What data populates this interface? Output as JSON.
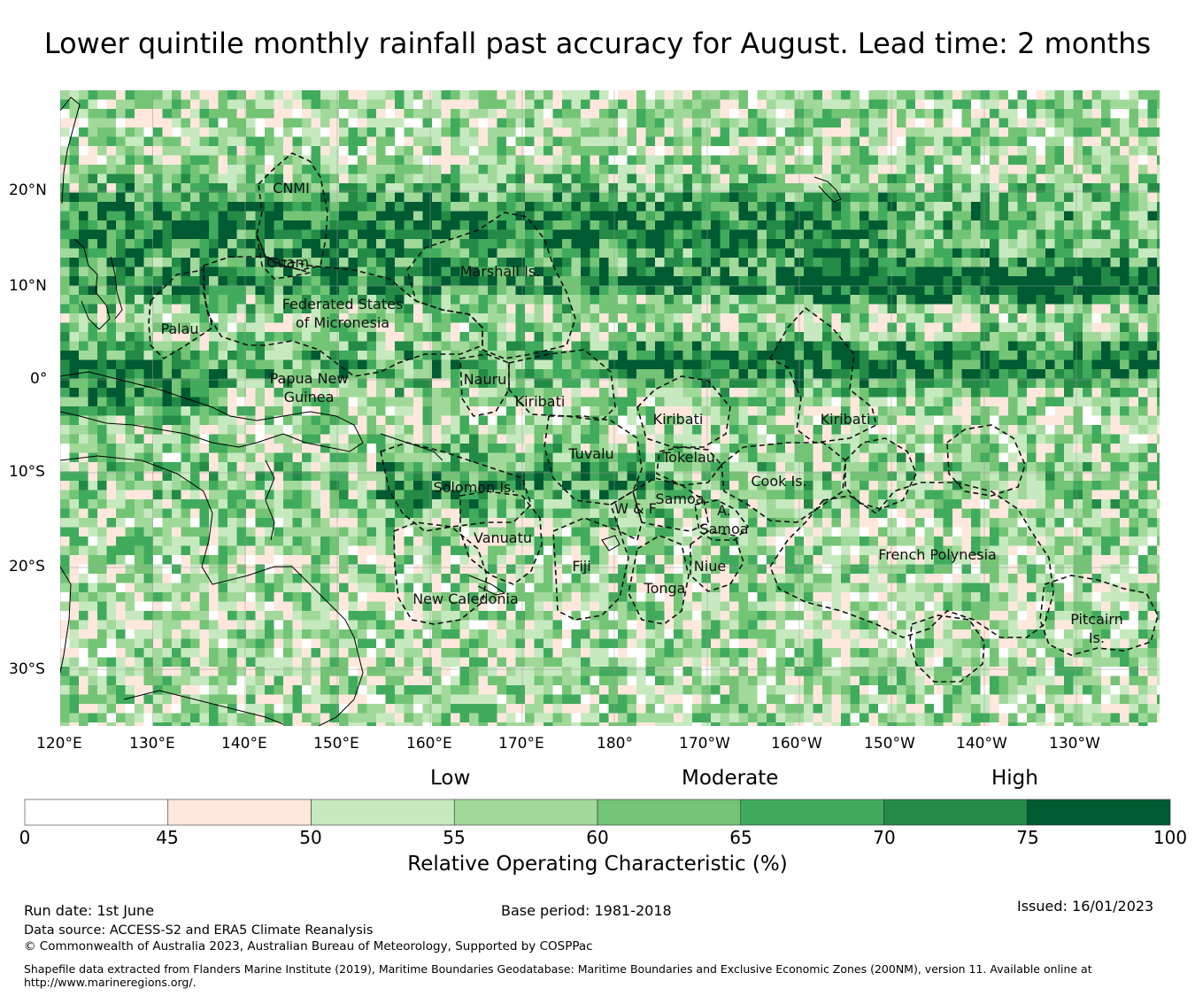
{
  "title": "Lower quintile monthly rainfall past accuracy for August. Lead time: 2 months",
  "map": {
    "lon_ticks": [
      "120°E",
      "130°E",
      "140°E",
      "150°E",
      "160°E",
      "170°E",
      "180°",
      "170°W",
      "160°W",
      "150°W",
      "140°W",
      "130°W"
    ],
    "lat_ticks": [
      "20°N",
      "10°N",
      "0°",
      "10°S",
      "20°S",
      "30°S"
    ],
    "region_labels": {
      "cnmi": "CNMI",
      "guam": "Guam",
      "marshall": "Marshall Is.",
      "fsm_1": "Federated States",
      "fsm_2": "of Micronesia",
      "palau": "Palau",
      "png_1": "Papua New",
      "png_2": "Guinea",
      "nauru": "Nauru",
      "kiribati_w": "Kiribati",
      "kiribati_c": "Kiribati",
      "kiribati_e": "Kiribati",
      "tuvalu": "Tuvalu",
      "tokelau": "Tokelau",
      "cook": "Cook Is.",
      "solomon": "Solomon Is.",
      "samoa": "Samoa",
      "wf": "W & F",
      "asamoa_1": "A.",
      "asamoa_2": "Samoa",
      "vanuatu": "Vanuatu",
      "fiji": "Fiji",
      "niue": "Niue",
      "tonga": "Tonga",
      "frpoly": "French Polynesia",
      "newcal": "New Caledonia",
      "pitcairn_1": "Pitcairn",
      "pitcairn_2": "Is."
    }
  },
  "legend": {
    "categories": {
      "low": "Low",
      "moderate": "Moderate",
      "high": "High"
    },
    "ticks": [
      "0",
      "45",
      "50",
      "55",
      "60",
      "65",
      "70",
      "75",
      "100"
    ],
    "colors": [
      "#ffffff",
      "#fee8dd",
      "#c7e9c0",
      "#a1d99b",
      "#74c476",
      "#41ab5d",
      "#238b45",
      "#005a32"
    ],
    "label": "Relative Operating Characteristic (%)"
  },
  "footer": {
    "run_date": "Run date: 1st June",
    "base_period": "Base period: 1981-2018",
    "issued": "Issued: 16/01/2023",
    "data_source": "Data source: ACCESS-S2 and ERA5 Climate Reanalysis",
    "copyright": "© Commonwealth of Australia 2023, Australian Bureau of Meteorology, Supported by COSPPac",
    "shapefile_1": "Shapefile data extracted from Flanders Marine Institute (2019), Maritime Boundaries Geodatabase: Maritime Boundaries and Exclusive Economic Zones (200NM), version 11. Available online at",
    "shapefile_2": "http://www.marineregions.org/."
  }
}
